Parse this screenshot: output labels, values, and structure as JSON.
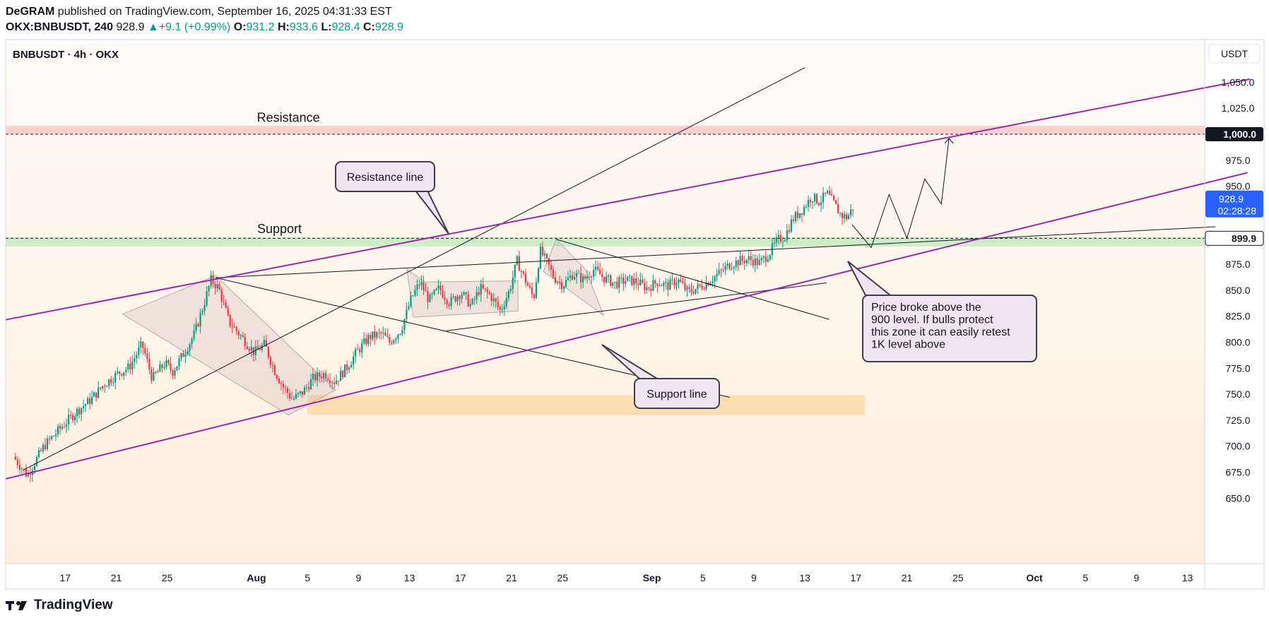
{
  "header": {
    "publisher": "DeGRAM",
    "published_text": "published on TradingView.com, September 16, 2025 04:31:33 EST",
    "symbol": "OKX:BNBUSDT, 240",
    "last": "928.9",
    "change": "+9.1 (+0.99%)",
    "o_label": "O:",
    "o": "931.2",
    "h_label": "H:",
    "h": "933.6",
    "l_label": "L:",
    "l": "928.4",
    "c_label": "C:",
    "c": "928.9"
  },
  "chart_title": "BNBUSDT · 4h · OKX",
  "currency": "USDT",
  "footer_brand": "TradingView",
  "colors": {
    "up": "#089981",
    "down": "#f23645",
    "channel": "#9c27b0",
    "resistance_zone": "#f8c9c9",
    "support_zone": "#c8ebc3",
    "demand_zone": "#ffd9a8",
    "price_badge": "#2962ff"
  },
  "chart_data": {
    "type": "candlestick",
    "timeframe": "4h",
    "ylim": [
      638,
      1068
    ],
    "yticks": [
      "1,050.0",
      "1,025.0",
      "975.0",
      "950.0",
      "875.0",
      "850.0",
      "825.0",
      "800.0",
      "775.0",
      "750.0",
      "725.0",
      "700.0",
      "675.0",
      "650.0"
    ],
    "xticks": [
      {
        "label": "17",
        "day": 17
      },
      {
        "label": "21",
        "day": 21
      },
      {
        "label": "25",
        "day": 25
      },
      {
        "label": "Aug",
        "day": 32,
        "bold": true
      },
      {
        "label": "5",
        "day": 36
      },
      {
        "label": "9",
        "day": 40
      },
      {
        "label": "13",
        "day": 44
      },
      {
        "label": "17",
        "day": 48
      },
      {
        "label": "21",
        "day": 52
      },
      {
        "label": "25",
        "day": 56
      },
      {
        "label": "Sep",
        "day": 63,
        "bold": true
      },
      {
        "label": "5",
        "day": 67
      },
      {
        "label": "9",
        "day": 71
      },
      {
        "label": "13",
        "day": 75
      },
      {
        "label": "17",
        "day": 79
      },
      {
        "label": "21",
        "day": 83
      },
      {
        "label": "25",
        "day": 87
      },
      {
        "label": "Oct",
        "day": 93,
        "bold": true
      },
      {
        "label": "5",
        "day": 97
      },
      {
        "label": "9",
        "day": 101
      },
      {
        "label": "13",
        "day": 105
      }
    ],
    "price_anchors": [
      [
        13.1,
        690
      ],
      [
        14.2,
        672
      ],
      [
        15.5,
        700
      ],
      [
        17,
        720
      ],
      [
        18.2,
        735
      ],
      [
        19.2,
        745
      ],
      [
        20.1,
        758
      ],
      [
        21.3,
        770
      ],
      [
        22.2,
        776
      ],
      [
        23.2,
        798
      ],
      [
        24,
        765
      ],
      [
        25,
        780
      ],
      [
        25.6,
        772
      ],
      [
        26.5,
        790
      ],
      [
        27.3,
        808
      ],
      [
        28,
        835
      ],
      [
        28.6,
        860
      ],
      [
        29.2,
        852
      ],
      [
        30,
        820
      ],
      [
        31,
        805
      ],
      [
        32,
        790
      ],
      [
        32.8,
        798
      ],
      [
        33.5,
        775
      ],
      [
        34.2,
        758
      ],
      [
        35,
        745
      ],
      [
        35.8,
        752
      ],
      [
        36.6,
        765
      ],
      [
        37.5,
        770
      ],
      [
        38.3,
        762
      ],
      [
        39.2,
        775
      ],
      [
        40,
        790
      ],
      [
        41,
        805
      ],
      [
        42,
        808
      ],
      [
        42.6,
        800
      ],
      [
        43.5,
        812
      ],
      [
        44.3,
        842
      ],
      [
        45,
        858
      ],
      [
        45.7,
        840
      ],
      [
        46.5,
        852
      ],
      [
        47.3,
        838
      ],
      [
        48.2,
        848
      ],
      [
        49,
        835
      ],
      [
        49.7,
        852
      ],
      [
        50.5,
        845
      ],
      [
        51.3,
        830
      ],
      [
        52,
        850
      ],
      [
        52.6,
        878
      ],
      [
        53.3,
        858
      ],
      [
        53.9,
        842
      ],
      [
        54.4,
        888
      ],
      [
        55,
        875
      ],
      [
        55.5,
        862
      ],
      [
        56.2,
        855
      ],
      [
        57,
        866
      ],
      [
        57.8,
        860
      ],
      [
        58.6,
        870
      ],
      [
        59.4,
        862
      ],
      [
        60.3,
        856
      ],
      [
        61.2,
        860
      ],
      [
        62,
        858
      ],
      [
        62.8,
        852
      ],
      [
        63.6,
        858
      ],
      [
        64.4,
        854
      ],
      [
        65.2,
        860
      ],
      [
        66,
        848
      ],
      [
        66.7,
        852
      ],
      [
        67.3,
        856
      ],
      [
        68,
        862
      ],
      [
        68.6,
        868
      ],
      [
        69.2,
        874
      ],
      [
        70,
        878
      ],
      [
        70.8,
        880
      ],
      [
        71.6,
        876
      ],
      [
        72.4,
        886
      ],
      [
        73,
        898
      ],
      [
        73.6,
        902
      ],
      [
        74.2,
        918
      ],
      [
        75,
        928
      ],
      [
        75.7,
        940
      ],
      [
        76.3,
        935
      ],
      [
        76.9,
        943
      ],
      [
        77.5,
        932
      ],
      [
        78,
        922
      ],
      [
        78.5,
        920
      ],
      [
        78.9,
        928.9
      ]
    ],
    "horizontal_levels": [
      {
        "price": 1000.0,
        "label": "1,000.0"
      },
      {
        "price": 899.9,
        "label": "899.9"
      }
    ],
    "current_price": {
      "value": "928.9",
      "countdown": "02:28:28"
    },
    "zones": [
      {
        "name": "resistance",
        "from": 1000,
        "to": 1008
      },
      {
        "name": "support",
        "from": 892,
        "to": 901
      },
      {
        "name": "demand",
        "from": 730,
        "to": 749
      }
    ],
    "channel_lines": [
      {
        "x1": 12.3,
        "y1": 821.5,
        "x2": 109.9,
        "y2": 1053
      },
      {
        "x1": 12.3,
        "y1": 668.5,
        "x2": 109.7,
        "y2": 963
      }
    ],
    "trend_lines": [
      {
        "x1": 13.7,
        "y1": 677,
        "x2": 75,
        "y2": 1064
      },
      {
        "x1": 28.8,
        "y1": 862,
        "x2": 69.1,
        "y2": 747
      },
      {
        "x1": 28.8,
        "y1": 862,
        "x2": 107.2,
        "y2": 911
      },
      {
        "x1": 46.9,
        "y1": 811,
        "x2": 76.7,
        "y2": 857
      },
      {
        "x1": 55.5,
        "y1": 899,
        "x2": 76.9,
        "y2": 822
      }
    ],
    "wedges": [
      [
        [
          21.5,
          827
        ],
        [
          28.8,
          864
        ],
        [
          38.2,
          754
        ],
        [
          34.5,
          730
        ]
      ],
      [
        [
          43.8,
          870
        ],
        [
          45.2,
          858
        ],
        [
          52.5,
          859
        ],
        [
          52.5,
          830
        ],
        [
          44.3,
          824
        ]
      ],
      [
        [
          55.5,
          899
        ],
        [
          57.8,
          870
        ],
        [
          59.2,
          826
        ],
        [
          54.5,
          868
        ]
      ]
    ],
    "projection": [
      [
        78.7,
        913
      ],
      [
        80.2,
        891
      ],
      [
        81.6,
        942
      ],
      [
        83,
        900
      ],
      [
        84.4,
        957
      ],
      [
        85.7,
        933
      ],
      [
        86.3,
        996
      ]
    ],
    "annotations": [
      {
        "text": "Resistance",
        "price": 1012,
        "day": 34.5
      },
      {
        "text": "Support",
        "price": 905,
        "day": 33.8
      },
      {
        "callout": [
          "Resistance line"
        ],
        "price": 948,
        "day": 42.6
      },
      {
        "callout": [
          "Support line"
        ],
        "price": 785,
        "day": 76.4
      },
      {
        "callout": [
          "Price broke above the",
          "900 level. If bulls protect",
          "this zone it can easily retest",
          "1K level above"
        ],
        "price": 836,
        "day": 94.5
      }
    ]
  }
}
